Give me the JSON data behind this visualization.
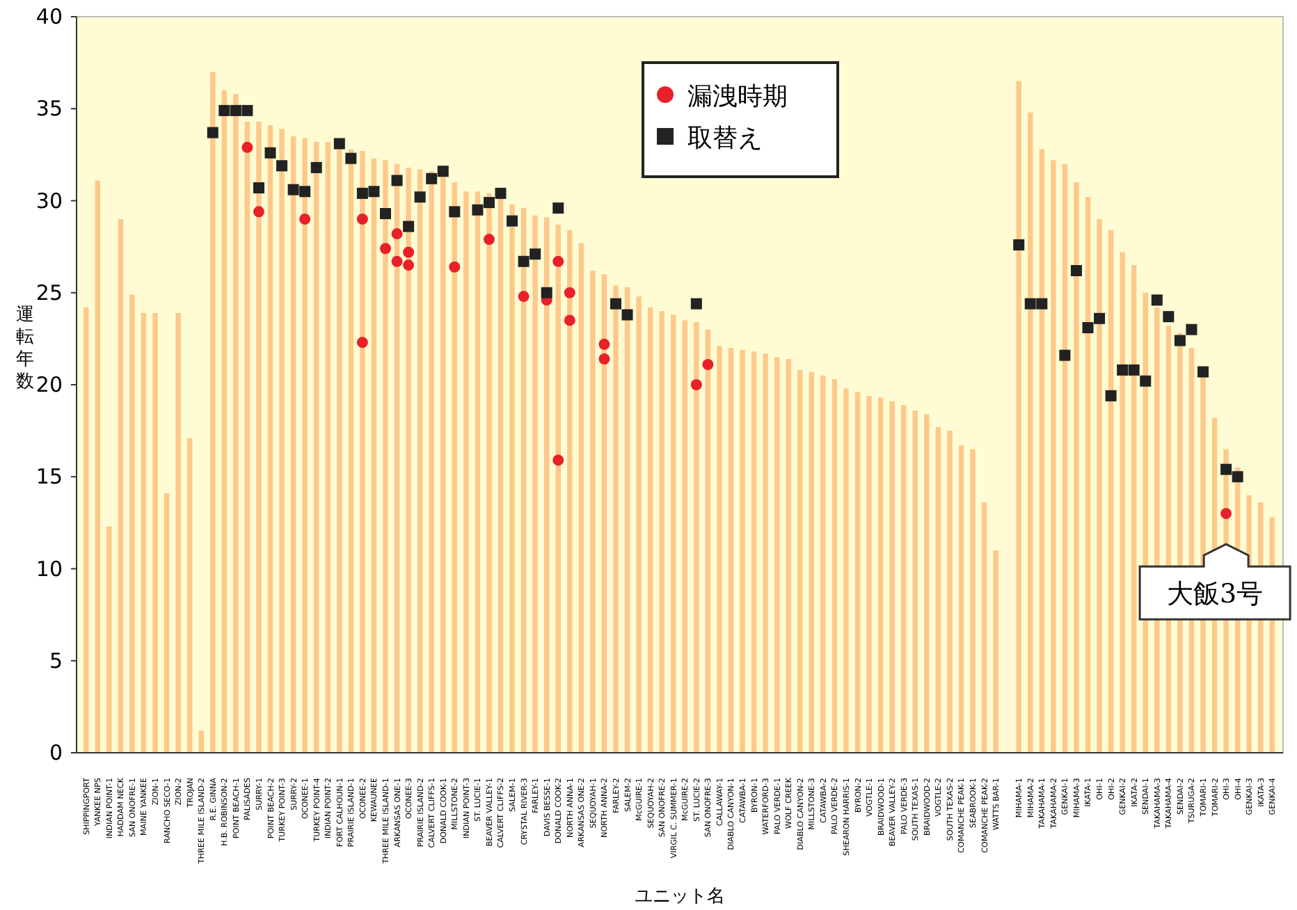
{
  "chart_data": {
    "type": "bar",
    "xlabel": "ユニット名",
    "ylabel": "運転年数",
    "categories": [
      "SHIPPINGPORT",
      "YANKEE NPS",
      "INDIAN POINT-1",
      "HADDAM NECK",
      "SAN ONOFRE-1",
      "MAINE YANKEE",
      "ZION-1",
      "RANCHO SECO-1",
      "ZION-2",
      "TROJAN",
      "THREE MILE ISLAND-2",
      "R.E. GINNA",
      "H.B. ROBINSON-2",
      "POINT BEACH-1",
      "PALISADES",
      "SURRY-1",
      "POINT BEACH-2",
      "TURKEY POINT-3",
      "SURRY-2",
      "OCONEE-1",
      "TURKEY POINT-4",
      "INDIAN POINT-2",
      "FORT CALHOUN-1",
      "PRAIRIE ISLAND-1",
      "OCONEE-2",
      "KEWAUNEE",
      "THREE MILE ISLAND-1",
      "ARKANSAS ONE-1",
      "OCONEE-3",
      "PRAIRIE ISLAND-2",
      "CALVERT CLIFFS-1",
      "DONALD COOK-1",
      "MILLSTONE-2",
      "INDIAN POINT-3",
      "ST. LUCIE-1",
      "BEAVER VALLEY-1",
      "CALVERT CLIFFS-2",
      "SALEM-1",
      "CRYSTAL RIVER-3",
      "FARLEY-1",
      "DAVIS BESSE-1",
      "DONALD COOK-2",
      "NORTH ANNA-1",
      "ARKANSAS ONE-2",
      "SEQUOYAH-1",
      "NORTH ANNA-2",
      "FARLEY-2",
      "SALEM-2",
      "McGUIRE-1",
      "SEQUOYAH-2",
      "SAN ONOFRE-2",
      "VIRGIL C. SUMMER-1",
      "McGUIRE-2",
      "ST. LUCIE-2",
      "SAN ONOFRE-3",
      "CALLAWAY-1",
      "DIABLO CANYON-1",
      "CATAWBA-1",
      "BYRON-1",
      "WATERFORD-3",
      "PALO VERDE-1",
      "WOLF CREEK",
      "DIABLO CANYON-2",
      "MILLSTONE-3",
      "CATAWBA-2",
      "PALO VERDE-2",
      "SHEARON HARRIS-1",
      "BYRON-2",
      "VOGTLE-1",
      "BRAIDWOOD-1",
      "BEAVER VALLEY-2",
      "PALO VERDE-3",
      "SOUTH TEXAS-1",
      "BRAIDWOOD-2",
      "VOGTLE-2",
      "SOUTH TEXAS-2",
      "COMANCHE PEAK-1",
      "SEABROOK-1",
      "COMANCHE PEAK-2",
      "WATTS BAR-1",
      null,
      "MIHAMA-1",
      "MIHAMA-2",
      "TAKAHAMA-1",
      "TAKAHAMA-2",
      "GENKAI-1",
      "MIHAMA-3",
      "IKATA-1",
      "OHI-1",
      "OHI-2",
      "GENKAI-2",
      "IKATA-2",
      "SENDAI-1",
      "TAKAHAMA-3",
      "TAKAHAMA-4",
      "SENDAI-2",
      "TSURUGA-2",
      "TOMARI-1",
      "TOMARI-2",
      "OHI-3",
      "OHI-4",
      "GENKAI-3",
      "IKATA-3",
      "GENKAI-4"
    ],
    "series": [
      {
        "color": "#fdc98a",
        "values": [
          24.2,
          31.1,
          12.3,
          29.0,
          24.9,
          23.9,
          23.9,
          14.1,
          23.9,
          17.1,
          1.2,
          37.0,
          36.0,
          35.8,
          34.3,
          34.3,
          34.1,
          33.9,
          33.5,
          33.4,
          33.2,
          33.2,
          33.0,
          32.8,
          32.7,
          32.3,
          32.2,
          32.0,
          31.8,
          31.7,
          31.6,
          31.3,
          31.0,
          30.5,
          30.5,
          30.4,
          30.3,
          29.8,
          29.6,
          29.2,
          29.1,
          28.7,
          28.4,
          27.7,
          26.2,
          26.0,
          25.4,
          25.3,
          24.8,
          24.2,
          24.0,
          23.8,
          23.5,
          23.4,
          23.0,
          22.1,
          22.0,
          21.9,
          21.8,
          21.7,
          21.5,
          21.4,
          20.8,
          20.7,
          20.5,
          20.3,
          19.8,
          19.6,
          19.4,
          19.3,
          19.1,
          18.9,
          18.6,
          18.4,
          17.7,
          17.5,
          16.7,
          16.5,
          13.6,
          11.0,
          null,
          36.5,
          34.8,
          32.8,
          32.2,
          32.0,
          31.0,
          30.2,
          29.0,
          28.4,
          27.2,
          26.5,
          25.0,
          24.2,
          23.2,
          22.8,
          22.0,
          20.5,
          18.2,
          16.5,
          15.5,
          14.0,
          13.6,
          12.8
        ]
      },
      {
        "type": "scatter",
        "name": "漏洩時期",
        "color": "#e8202a",
        "marker": "circle",
        "x": [
          "PALISADES",
          "SURRY-1",
          "OCONEE-1",
          "OCONEE-2",
          "OCONEE-2",
          "THREE MILE ISLAND-1",
          "ARKANSAS ONE-1",
          "OCONEE-3",
          "ARKANSAS ONE-1",
          "OCONEE-3",
          "MILLSTONE-2",
          "BEAVER VALLEY-1",
          "CRYSTAL RIVER-3",
          "DAVIS BESSE-1",
          "DONALD COOK-2",
          "NORTH ANNA-1",
          "NORTH ANNA-1",
          "DONALD COOK-2",
          "NORTH ANNA-2",
          "NORTH ANNA-2",
          "ST. LUCIE-2",
          "SAN ONOFRE-3",
          "OHI-3"
        ],
        "values": [
          32.9,
          29.4,
          29.0,
          29.0,
          22.3,
          27.4,
          28.2,
          27.2,
          26.7,
          26.5,
          26.4,
          27.9,
          24.8,
          24.6,
          26.7,
          25.0,
          23.5,
          15.9,
          22.2,
          21.4,
          20.0,
          21.1,
          13.0
        ]
      },
      {
        "type": "scatter",
        "name": "取替え",
        "color": "#222222",
        "marker": "square",
        "x": [
          "R.E. GINNA",
          "H.B. ROBINSON-2",
          "POINT BEACH-1",
          "PALISADES",
          "POINT BEACH-2",
          "TURKEY POINT-3",
          "SURRY-1",
          "SURRY-2",
          "OCONEE-1",
          "TURKEY POINT-4",
          "FORT CALHOUN-1",
          "PRAIRIE ISLAND-1",
          "OCONEE-2",
          "KEWAUNEE",
          "ARKANSAS ONE-1",
          "THREE MILE ISLAND-1",
          "OCONEE-3",
          "PRAIRIE ISLAND-2",
          "CALVERT CLIFFS-1",
          "DONALD COOK-1",
          "MILLSTONE-2",
          "ST. LUCIE-1",
          "BEAVER VALLEY-1",
          "CALVERT CLIFFS-2",
          "SALEM-1",
          "CRYSTAL RIVER-3",
          "FARLEY-1",
          "DAVIS BESSE-1",
          "DONALD COOK-2",
          "FARLEY-2",
          "SALEM-2",
          "ST. LUCIE-2",
          "MIHAMA-1",
          "MIHAMA-2",
          "TAKAHAMA-1",
          "GENKAI-1",
          "MIHAMA-3",
          "IKATA-1",
          "OHI-1",
          "OHI-2",
          "GENKAI-2",
          "IKATA-2",
          "SENDAI-1",
          "TAKAHAMA-3",
          "TAKAHAMA-4",
          "SENDAI-2",
          "TSURUGA-2",
          "TOMARI-1",
          "OHI-3",
          "OHI-4"
        ],
        "values": [
          33.7,
          34.9,
          34.9,
          34.9,
          32.6,
          31.9,
          30.7,
          30.6,
          30.5,
          31.8,
          33.1,
          32.3,
          30.4,
          30.5,
          31.1,
          29.3,
          28.6,
          30.2,
          31.2,
          31.6,
          29.4,
          29.5,
          29.9,
          30.4,
          28.9,
          26.7,
          27.1,
          25.0,
          29.6,
          24.4,
          23.8,
          24.4,
          27.6,
          24.4,
          24.4,
          21.6,
          26.2,
          23.1,
          23.6,
          19.4,
          20.8,
          20.8,
          20.2,
          24.6,
          23.7,
          22.4,
          23.0,
          20.7,
          15.4,
          15.0
        ]
      }
    ],
    "ylim": [
      0,
      40
    ],
    "yticks": [
      0,
      5,
      10,
      15,
      20,
      25,
      30,
      35,
      40
    ],
    "legend": "top",
    "annotations": [
      {
        "text": "大飯3号",
        "x": "OHI-3",
        "y": 13.0
      }
    ]
  }
}
